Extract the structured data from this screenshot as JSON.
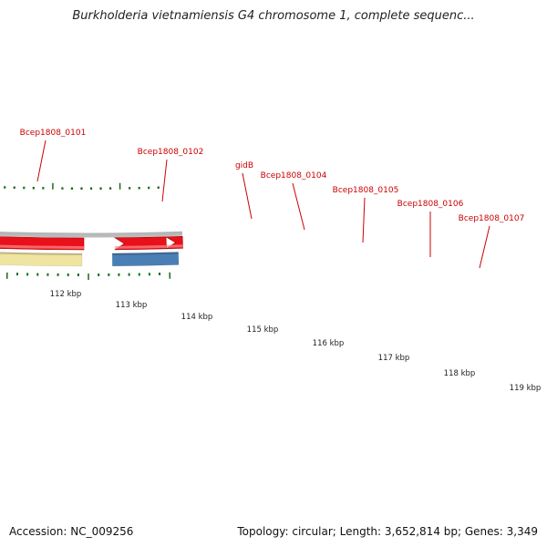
{
  "title": "Burkholderia vietnamiensis G4 chromosome 1, complete sequenc...",
  "footer": {
    "accession": "Accession: NC_009256",
    "topology": "Topology: circular; Length: 3,652,814 bp; Genes: 3,349"
  },
  "colors": {
    "gene_forward": "#e8101a",
    "gene_label": "#cc0000",
    "tick": "#1a6b1a",
    "backbone": "#8a8a8a"
  },
  "scale_labels": [
    "112 kbp",
    "113 kbp",
    "114 kbp",
    "115 kbp",
    "116 kbp",
    "117 kbp",
    "118 kbp",
    "119 kbp"
  ],
  "genes": [
    {
      "id": "gene-prev",
      "label": "Bcep1808_0101",
      "color": "#4a7fb5"
    },
    {
      "id": "gene-0102",
      "label": "Bcep1808_0102",
      "color": "#efe4a0"
    },
    {
      "id": "gene-gidb",
      "label": "gidB",
      "color": "#6b8e23"
    },
    {
      "id": "gene-0104",
      "label": "Bcep1808_0104",
      "color": "#efe4a0"
    },
    {
      "id": "gene-0105",
      "label": "Bcep1808_0105",
      "color": "#ff8c00"
    },
    {
      "id": "gene-0106",
      "label": "Bcep1808_0106",
      "color": "#483d8b"
    },
    {
      "id": "gene-0107",
      "label": "Bcep1808_0107",
      "color": null
    },
    {
      "id": "gene-next",
      "label": "",
      "color": "#00d5e8"
    }
  ]
}
